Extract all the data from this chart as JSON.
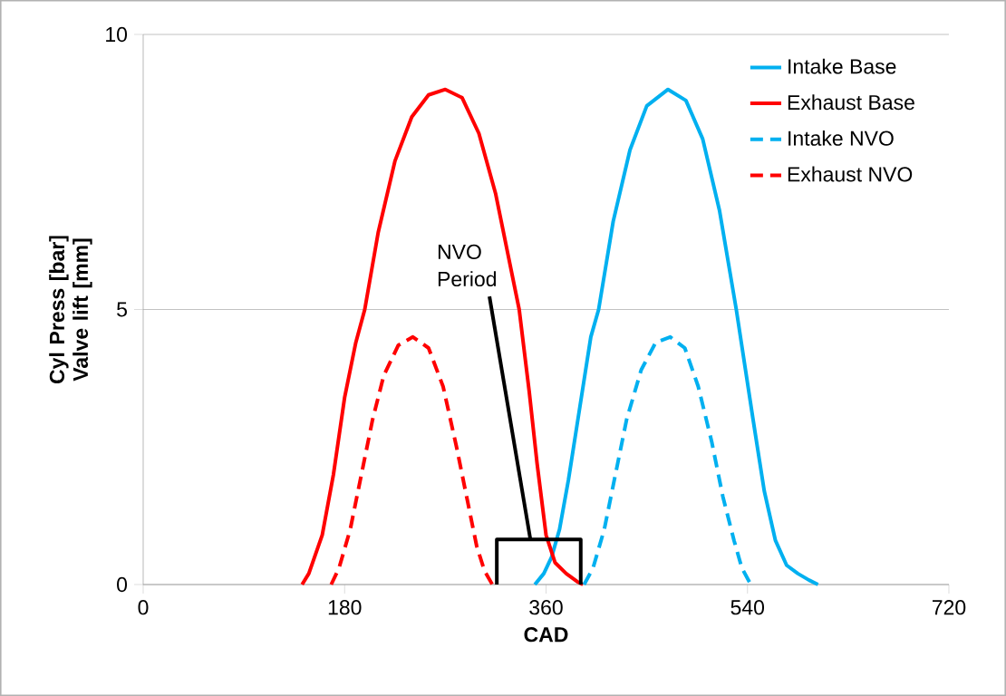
{
  "chart_data": {
    "type": "line",
    "xlabel": "CAD",
    "ylabel": "Cyl Press [bar] Valve lift [mm]",
    "xlim": [
      0,
      720
    ],
    "xticks": [
      0,
      180,
      360,
      540,
      720
    ],
    "ylim": [
      0,
      10
    ],
    "yticks": [
      0,
      5,
      10
    ],
    "grid": "y",
    "legend": "top right",
    "series": [
      {
        "name": "Intake Base",
        "color": "#00b0f0",
        "line_style": "solid",
        "x": [
          350,
          358,
          365,
          372,
          380,
          390,
          400,
          407,
          420,
          435,
          450,
          469,
          485,
          500,
          515,
          530,
          545,
          555,
          565,
          575,
          585,
          595,
          603
        ],
        "values": [
          0,
          0.2,
          0.5,
          1.0,
          1.9,
          3.2,
          4.5,
          5.0,
          6.6,
          7.9,
          8.7,
          9,
          8.8,
          8.1,
          6.8,
          5,
          3.0,
          1.7,
          0.8,
          0.35,
          0.2,
          0.08,
          0
        ]
      },
      {
        "name": "Exhaust Base",
        "color": "#ff0000",
        "line_style": "solid",
        "x": [
          142,
          148,
          160,
          170,
          180,
          190,
          198,
          210,
          225,
          240,
          255,
          270,
          285,
          300,
          315,
          326,
          336,
          345,
          352,
          360,
          368,
          378,
          388,
          393
        ],
        "values": [
          0,
          0.2,
          0.9,
          2.0,
          3.4,
          4.4,
          5,
          6.4,
          7.7,
          8.5,
          8.9,
          9,
          8.85,
          8.2,
          7.1,
          6,
          5,
          3.5,
          2.2,
          0.9,
          0.4,
          0.2,
          0.05,
          0
        ]
      },
      {
        "name": "Intake NVO",
        "color": "#00b0f0",
        "line_style": "dashed",
        "x": [
          394,
          402,
          412,
          422,
          432,
          445,
          458,
          471,
          484,
          496,
          508,
          518,
          528,
          535,
          543
        ],
        "values": [
          0,
          0.3,
          1.0,
          2.0,
          3.0,
          3.9,
          4.4,
          4.5,
          4.3,
          3.6,
          2.6,
          1.6,
          0.8,
          0.3,
          0
        ]
      },
      {
        "name": "Exhaust NVO",
        "color": "#ff0000",
        "line_style": "dashed",
        "x": [
          168,
          175,
          185,
          195,
          205,
          215,
          228,
          241,
          255,
          268,
          280,
          290,
          298,
          305,
          312
        ],
        "values": [
          0,
          0.3,
          1.0,
          2.0,
          3.0,
          3.8,
          4.35,
          4.5,
          4.3,
          3.6,
          2.5,
          1.5,
          0.7,
          0.25,
          0
        ]
      },
      {
        "color": "#000000",
        "line_style": "solid",
        "x": [
          316,
          316,
          391,
          391
        ],
        "values": [
          0,
          0.82,
          0.82,
          0
        ]
      }
    ],
    "annotations": [
      {
        "text": "NVO Period",
        "x": 346,
        "y": 0.82
      }
    ]
  }
}
